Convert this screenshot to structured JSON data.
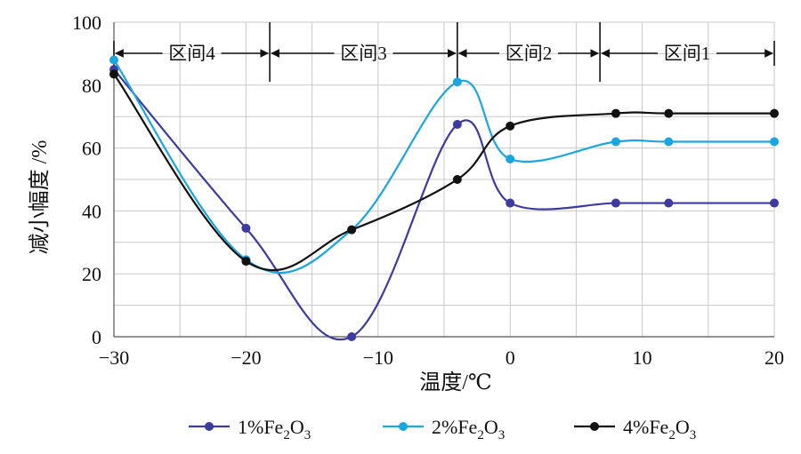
{
  "colors": {
    "s1": "#3b3ba0",
    "s2": "#1aa7e0",
    "s3": "#111111"
  },
  "chart_data": {
    "type": "line",
    "xlabel": "温度/℃",
    "ylabel": "减小幅度 /%",
    "xlim": [
      -30,
      20
    ],
    "ylim": [
      0,
      100
    ],
    "x_ticks": [
      "−30",
      "−20",
      "−10",
      "0",
      "10",
      "20"
    ],
    "y_ticks": [
      "0",
      "20",
      "40",
      "60",
      "80",
      "100"
    ],
    "grid": true,
    "legend_position": "bottom",
    "zones": [
      {
        "label": "区间4",
        "from": -30,
        "to": -18.2
      },
      {
        "label": "区间3",
        "from": -18.2,
        "to": -4
      },
      {
        "label": "区间2",
        "from": -4,
        "to": 6.8
      },
      {
        "label": "区间1",
        "from": 6.8,
        "to": 20
      }
    ],
    "series": [
      {
        "name": "1%Fe₂O₃",
        "legend": {
          "pre": "1%Fe",
          "sub1": "2",
          "mid": "O",
          "sub2": "3"
        },
        "x": [
          -30,
          -20,
          -12,
          -4,
          0,
          8,
          12,
          20
        ],
        "y": [
          85,
          34.5,
          0,
          67.5,
          42.5,
          42.5,
          42.5,
          42.5
        ]
      },
      {
        "name": "2%Fe₂O₃",
        "legend": {
          "pre": "2%Fe",
          "sub1": "2",
          "mid": "O",
          "sub2": "3"
        },
        "x": [
          -30,
          -20,
          -12,
          -4,
          0,
          8,
          12,
          20
        ],
        "y": [
          88,
          24.5,
          34,
          81,
          56.5,
          62,
          62,
          62
        ]
      },
      {
        "name": "4%Fe₂O₃",
        "legend": {
          "pre": "4%Fe",
          "sub1": "2",
          "mid": "O",
          "sub2": "3"
        },
        "x": [
          -30,
          -20,
          -12,
          -4,
          0,
          8,
          12,
          20
        ],
        "y": [
          83.5,
          24,
          34,
          50,
          67,
          71,
          71,
          71
        ]
      }
    ]
  }
}
